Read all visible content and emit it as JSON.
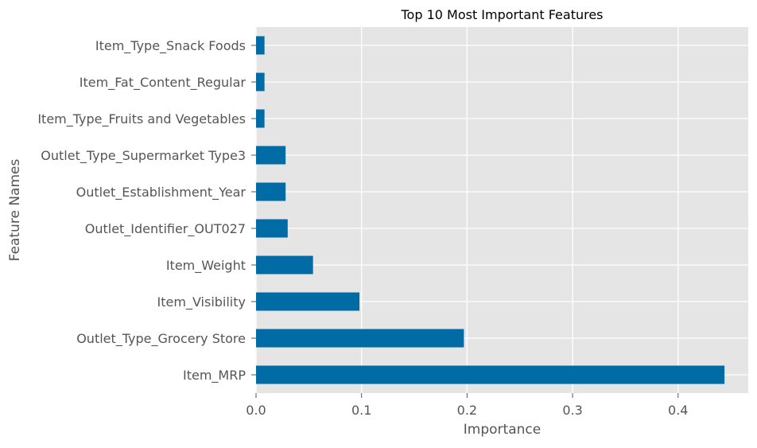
{
  "chart_data": {
    "type": "bar",
    "orientation": "horizontal",
    "title": "Top 10 Most Important Features",
    "xlabel": "Importance",
    "ylabel": "Feature Names",
    "xlim": [
      0,
      0.4665
    ],
    "xticks": [
      "0.0",
      "0.1",
      "0.2",
      "0.3",
      "0.4"
    ],
    "grid": true,
    "categories": [
      "Item_MRP",
      "Outlet_Type_Grocery Store",
      "Item_Visibility",
      "Item_Weight",
      "Outlet_Identifier_OUT027",
      "Outlet_Establishment_Year",
      "Outlet_Type_Supermarket Type3",
      "Item_Type_Fruits and Vegetables",
      "Item_Fat_Content_Regular",
      "Item_Type_Snack Foods"
    ],
    "values": [
      0.444,
      0.197,
      0.098,
      0.054,
      0.03,
      0.028,
      0.028,
      0.008,
      0.008,
      0.008
    ],
    "colors": {
      "bar": "#006BA4",
      "background": "#E5E5E5",
      "grid": "#FFFFFF",
      "text": "#555555"
    }
  }
}
